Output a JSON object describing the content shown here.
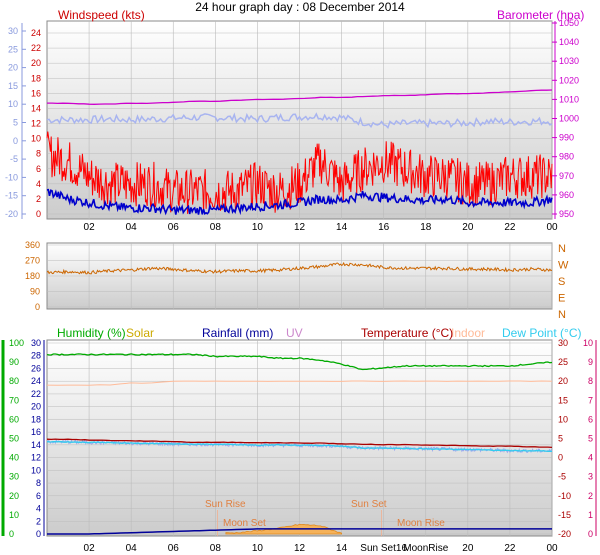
{
  "title": "24 hour graph day : 08 December 2014",
  "hour_labels": [
    "02",
    "04",
    "06",
    "08",
    "10",
    "12",
    "14",
    "16",
    "18",
    "20",
    "22",
    "00"
  ],
  "bottom_hour_labels": [
    "02",
    "04",
    "06",
    "08",
    "10",
    "12",
    "14",
    "Sun Set16",
    "MoonRise",
    "20",
    "22",
    "00"
  ],
  "colors": {
    "windspeed": "#ff0000",
    "windavg": "#0000cc",
    "gust_band": "#a8b4f0",
    "barometer": "#cc00cc",
    "direction": "#cc6600",
    "humidity": "#00aa00",
    "solar": "#ccaa00",
    "rainfall": "#000099",
    "uv": "#cc88cc",
    "temperature": "#aa0000",
    "indoor": "#ffbb99",
    "dewpoint": "#33ccee",
    "left_axis": "#8899dd",
    "mid_left_axis": "#cc6600",
    "bottom_left_axis": "#00aa00",
    "right_axis_top": "#cc00cc",
    "right_axis_bottom": "#cc0066"
  },
  "chart_data": [
    {
      "type": "line",
      "title": "",
      "series": [
        {
          "name": "Windspeed (kts)",
          "values_by_hour": [
            8,
            7,
            5,
            4,
            4,
            4,
            3,
            3,
            3,
            3,
            4,
            3,
            4,
            7,
            4,
            6,
            7,
            6,
            5,
            5,
            4,
            4,
            5,
            5,
            5
          ]
        },
        {
          "name": "",
          "values_by_hour": [
            3,
            2,
            1.5,
            1,
            0.8,
            0.8,
            0.5,
            0.5,
            0.5,
            0.8,
            1,
            1.2,
            1.5,
            2,
            1.8,
            2.5,
            2.2,
            2,
            1.8,
            2,
            1.5,
            1.5,
            1.5,
            1.5,
            2
          ]
        },
        {
          "name": "Barometer (hpa)",
          "values_by_hour": [
            1008,
            1008,
            1007.5,
            1007.5,
            1008,
            1008,
            1008.5,
            1009,
            1009,
            1009.5,
            1010,
            1010,
            1010.5,
            1011,
            1011,
            1011.5,
            1012,
            1012,
            1012.5,
            1013,
            1013,
            1013.5,
            1014,
            1014.5,
            1015
          ]
        }
      ],
      "left_axis": {
        "ticks": [
          24,
          22,
          20,
          18,
          16,
          14,
          12,
          10,
          8,
          6,
          4,
          2,
          0
        ],
        "outer_ticks": [
          30,
          25,
          20,
          15,
          10,
          5,
          0,
          -5,
          -10,
          -15,
          -20
        ]
      },
      "right_axis": {
        "label": "Barometer (hpa)",
        "ticks": [
          1050,
          1040,
          1030,
          1020,
          1010,
          1000,
          990,
          980,
          970,
          960,
          950
        ]
      },
      "legend": {
        "left": "Windspeed (kts)",
        "right": "Barometer (hpa)"
      }
    },
    {
      "type": "line",
      "series": [
        {
          "name": "",
          "values_by_hour": [
            200,
            205,
            200,
            210,
            215,
            225,
            220,
            210,
            205,
            210,
            210,
            215,
            225,
            235,
            250,
            245,
            230,
            225,
            225,
            225,
            220,
            220,
            215,
            220,
            215
          ]
        }
      ],
      "left_axis": {
        "ticks": [
          360,
          270,
          180,
          90,
          0
        ]
      },
      "right_axis": {
        "ticks": [
          "N",
          "W",
          "S",
          "E",
          "N"
        ]
      }
    },
    {
      "type": "line",
      "series": [
        {
          "name": "Humidity (%)",
          "values_by_hour": [
            94,
            94,
            94,
            94,
            94,
            94,
            94,
            94,
            93,
            93,
            93,
            92,
            92,
            91,
            89,
            86,
            87,
            88,
            88,
            88,
            88,
            88,
            88,
            89,
            90
          ]
        },
        {
          "name": "Solar",
          "values_by_hour": [
            0,
            0,
            0,
            0,
            0,
            0,
            0,
            0,
            0,
            0.1,
            0.4,
            0.8,
            1.4,
            1.2,
            0,
            0,
            0,
            0,
            0,
            0,
            0,
            0,
            0,
            0,
            0
          ]
        },
        {
          "name": "Rainfall (mm)",
          "values_by_hour": [
            0,
            0,
            0,
            0.1,
            0.2,
            0.3,
            0.4,
            0.5,
            0.6,
            0.7,
            0.8,
            0.8,
            0.8,
            0.8,
            0.8,
            0.8,
            0.8,
            0.8,
            0.8,
            0.8,
            0.8,
            0.8,
            0.8,
            0.8,
            0.8
          ]
        },
        {
          "name": "Temperature (°C)",
          "values_by_hour": [
            4.8,
            4.8,
            4.6,
            4.5,
            4.4,
            4.3,
            4.2,
            4.0,
            4.0,
            4.0,
            3.9,
            3.9,
            3.8,
            3.8,
            3.6,
            3.5,
            3.4,
            3.4,
            3.3,
            3.2,
            3.1,
            3.0,
            3.0,
            2.8,
            2.7
          ]
        },
        {
          "name": "Indoor",
          "values_by_hour": [
            19,
            19,
            19,
            19,
            19.5,
            19.5,
            20,
            20,
            20,
            20,
            20,
            20,
            20,
            20,
            20,
            20,
            20,
            20,
            20,
            20,
            20,
            20,
            20,
            20,
            20
          ]
        },
        {
          "name": "Dew Point (°C)",
          "values_by_hour": [
            4.2,
            4.1,
            4.0,
            3.9,
            3.8,
            3.7,
            3.6,
            3.5,
            3.5,
            3.4,
            3.3,
            3.3,
            3.2,
            3.2,
            3.0,
            2.5,
            2.5,
            2.4,
            2.3,
            2.2,
            2.1,
            2.0,
            1.8,
            1.8,
            1.7
          ]
        }
      ],
      "left_axis_humidity": {
        "ticks": [
          100,
          90,
          80,
          70,
          60,
          50,
          40,
          30,
          20,
          10,
          0
        ]
      },
      "left_axis_rain": {
        "ticks": [
          30,
          28,
          26,
          24,
          22,
          20,
          18,
          16,
          14,
          12,
          10,
          8,
          6,
          4,
          2,
          0
        ]
      },
      "right_axis_temp": {
        "ticks": [
          30,
          25,
          20,
          15,
          10,
          5,
          0,
          -5,
          -10,
          -15,
          -20
        ]
      },
      "right_axis_uv": {
        "ticks": [
          10,
          9,
          8,
          7,
          6,
          5,
          4,
          3,
          2,
          1,
          0
        ]
      },
      "annotations": [
        "Sun Rise",
        "Sun Set",
        "Moon Set",
        "Moon Rise"
      ]
    }
  ]
}
